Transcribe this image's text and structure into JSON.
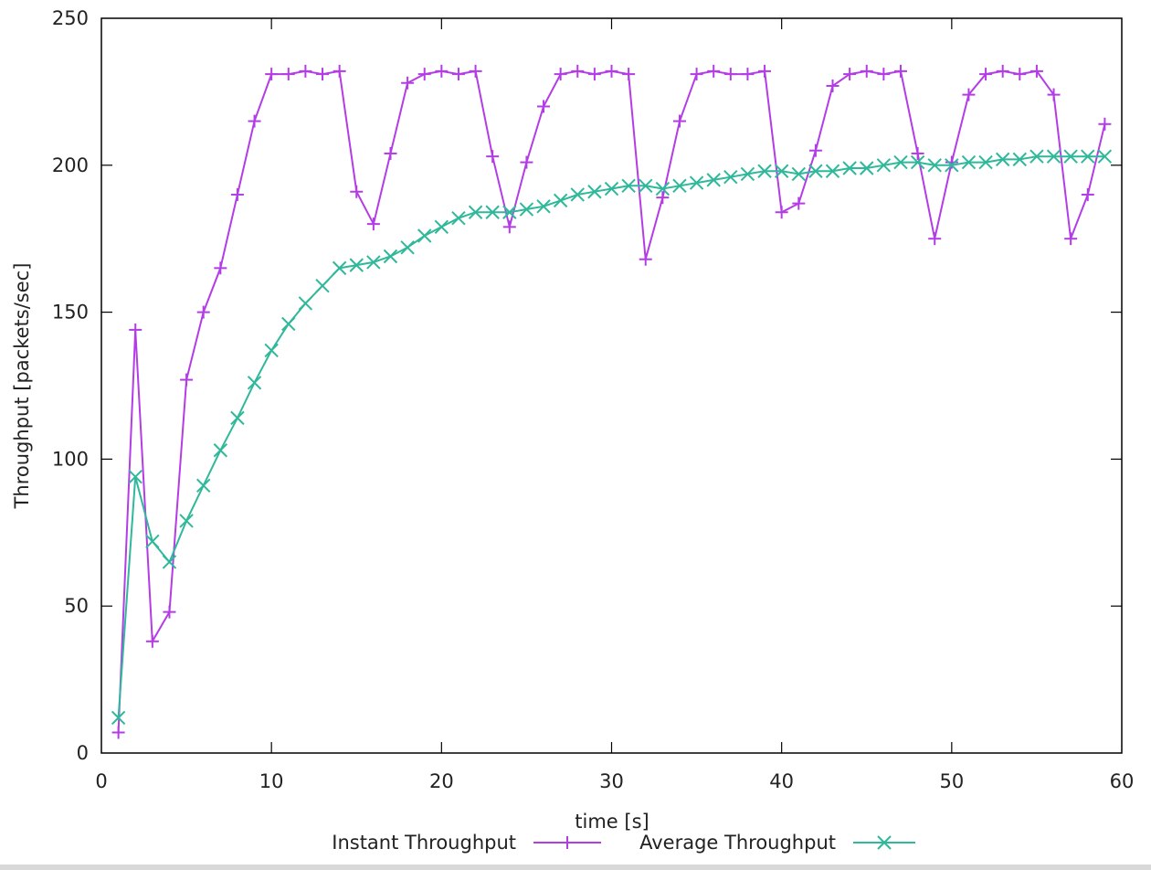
{
  "chart_data": {
    "type": "line",
    "xlabel": "time [s]",
    "ylabel": "Throughput [packets/sec]",
    "xlim": [
      0,
      60
    ],
    "ylim": [
      0,
      250
    ],
    "x_ticks": [
      "0",
      "10",
      "20",
      "30",
      "40",
      "50",
      "60"
    ],
    "y_ticks": [
      "0",
      "50",
      "100",
      "150",
      "200",
      "250"
    ],
    "grid": false,
    "legend_position": "bottom-center",
    "series": [
      {
        "name": "Instant Throughput",
        "color": "#b43ce6",
        "marker": "plus",
        "x": [
          1,
          2,
          3,
          4,
          5,
          6,
          7,
          8,
          9,
          10,
          11,
          12,
          13,
          14,
          15,
          16,
          17,
          18,
          19,
          20,
          21,
          22,
          23,
          24,
          25,
          26,
          27,
          28,
          29,
          30,
          31,
          32,
          33,
          34,
          35,
          36,
          37,
          38,
          39,
          40,
          41,
          42,
          43,
          44,
          45,
          46,
          47,
          48,
          49,
          50,
          51,
          52,
          53,
          54,
          55,
          56,
          57,
          58,
          59
        ],
        "values": [
          7,
          144,
          38,
          48,
          127,
          150,
          165,
          190,
          215,
          231,
          231,
          232,
          231,
          232,
          191,
          180,
          204,
          228,
          231,
          232,
          231,
          232,
          203,
          179,
          201,
          220,
          231,
          232,
          231,
          232,
          231,
          168,
          189,
          215,
          231,
          232,
          231,
          231,
          232,
          184,
          187,
          205,
          227,
          231,
          232,
          231,
          232,
          204,
          175,
          201,
          224,
          231,
          232,
          231,
          232,
          224,
          175,
          190,
          214
        ]
      },
      {
        "name": "Average Throughput",
        "color": "#2fb89a",
        "marker": "cross",
        "x": [
          1,
          2,
          3,
          4,
          5,
          6,
          7,
          8,
          9,
          10,
          11,
          12,
          13,
          14,
          15,
          16,
          17,
          18,
          19,
          20,
          21,
          22,
          23,
          24,
          25,
          26,
          27,
          28,
          29,
          30,
          31,
          32,
          33,
          34,
          35,
          36,
          37,
          38,
          39,
          40,
          41,
          42,
          43,
          44,
          45,
          46,
          47,
          48,
          49,
          50,
          51,
          52,
          53,
          54,
          55,
          56,
          57,
          58,
          59
        ],
        "values": [
          12,
          94,
          72,
          65,
          79,
          91,
          103,
          114,
          126,
          137,
          146,
          153,
          159,
          165,
          166,
          167,
          169,
          172,
          176,
          179,
          182,
          184,
          184,
          184,
          185,
          186,
          188,
          190,
          191,
          192,
          193,
          193,
          192,
          193,
          194,
          195,
          196,
          197,
          198,
          198,
          197,
          198,
          198,
          199,
          199,
          200,
          201,
          201,
          200,
          200,
          201,
          201,
          202,
          202,
          203,
          203,
          203,
          203,
          203
        ]
      }
    ]
  }
}
